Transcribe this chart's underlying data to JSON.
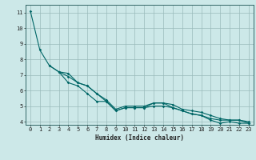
{
  "title": "",
  "xlabel": "Humidex (Indice chaleur)",
  "bg_color": "#cce8e8",
  "grid_color": "#99bbbb",
  "line_color": "#006666",
  "spine_color": "#336666",
  "xlim": [
    -0.5,
    23.5
  ],
  "ylim": [
    3.8,
    11.5
  ],
  "xticks": [
    0,
    1,
    2,
    3,
    4,
    5,
    6,
    7,
    8,
    9,
    10,
    11,
    12,
    13,
    14,
    15,
    16,
    17,
    18,
    19,
    20,
    21,
    22,
    23
  ],
  "yticks": [
    4,
    5,
    6,
    7,
    8,
    9,
    10,
    11
  ],
  "curve1_x": [
    0,
    1,
    2,
    3,
    4,
    5,
    6,
    7,
    8,
    9,
    10,
    11,
    12,
    13,
    14,
    15,
    16,
    17,
    18,
    19,
    20,
    21,
    22,
    23
  ],
  "curve1_y": [
    11.1,
    8.6,
    7.6,
    7.2,
    6.5,
    6.3,
    5.8,
    5.3,
    5.3,
    4.7,
    4.9,
    4.9,
    4.9,
    5.0,
    5.0,
    4.9,
    4.7,
    4.5,
    4.4,
    4.1,
    3.9,
    4.0,
    3.9,
    3.9
  ],
  "curve2_x": [
    2,
    3,
    4,
    5,
    6,
    7,
    8,
    9,
    10,
    11,
    12,
    13,
    14,
    15,
    16,
    17,
    18,
    19,
    20,
    21,
    22,
    23
  ],
  "curve2_y": [
    7.6,
    7.2,
    6.9,
    6.5,
    6.3,
    5.8,
    5.3,
    4.7,
    4.9,
    4.9,
    4.9,
    5.2,
    5.2,
    4.9,
    4.7,
    4.5,
    4.4,
    4.2,
    4.1,
    4.1,
    4.1,
    4.0
  ],
  "curve3_x": [
    3,
    4,
    5,
    6,
    7,
    8,
    9,
    10,
    11,
    12,
    13,
    14,
    15,
    16,
    17,
    18,
    19,
    20,
    21,
    22,
    23
  ],
  "curve3_y": [
    7.2,
    7.1,
    6.5,
    6.3,
    5.8,
    5.4,
    4.8,
    5.0,
    5.0,
    5.0,
    5.2,
    5.2,
    5.1,
    4.8,
    4.7,
    4.6,
    4.4,
    4.2,
    4.1,
    4.1,
    3.9
  ],
  "tick_fontsize": 5,
  "xlabel_fontsize": 5.5
}
